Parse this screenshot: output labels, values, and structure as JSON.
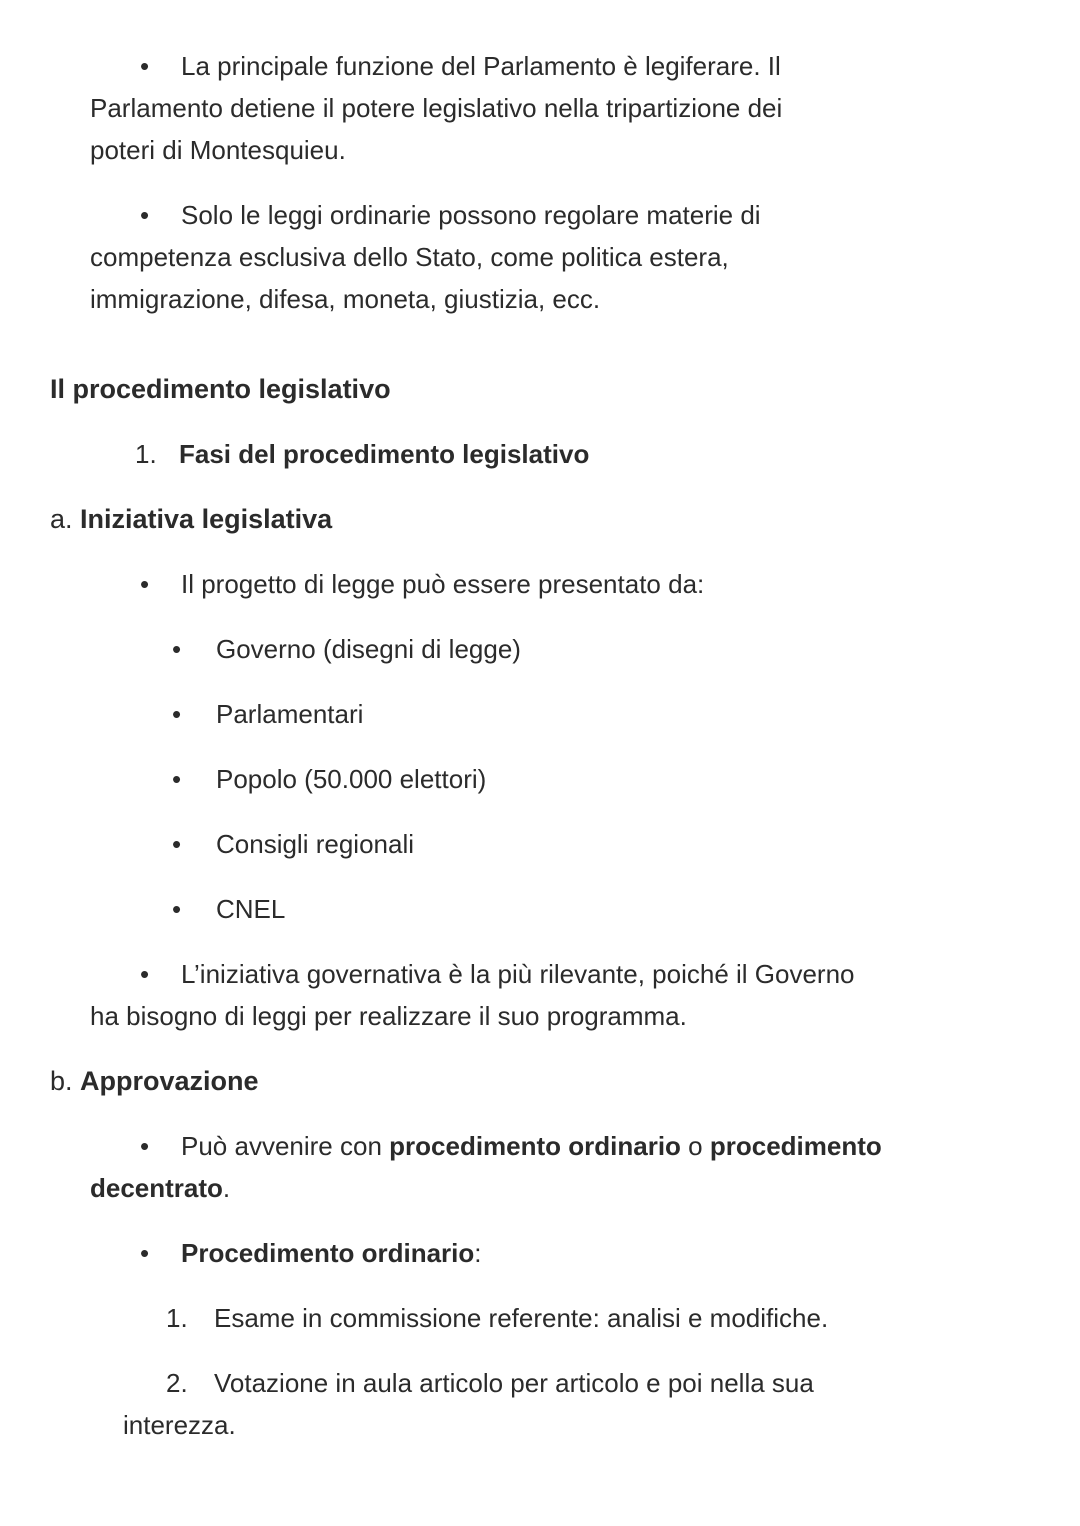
{
  "page": {
    "background_color": "#ffffff",
    "text_color": "#2b2b2b"
  },
  "document": {
    "blocks": [
      {
        "type": "bullet1",
        "marker": "•",
        "runs": [
          {
            "text": "La principale funzione del Parlamento è legiferare. Il\nParlamento detiene il potere legislativo nella tripartizione dei\npoteri di Montesquieu."
          }
        ]
      },
      {
        "type": "bullet1",
        "marker": "•",
        "runs": [
          {
            "text": "Solo le leggi ordinarie possono regolare materie di\ncompetenza esclusiva dello Stato, come politica estera,\nimmigrazione, difesa, moneta, giustizia, ecc."
          }
        ]
      },
      {
        "type": "heading",
        "runs": [
          {
            "text": "Il procedimento legislativo",
            "bold": true
          }
        ]
      },
      {
        "type": "number1",
        "marker": "1.",
        "runs": [
          {
            "text": "Fasi del procedimento legislativo",
            "bold": true
          }
        ]
      },
      {
        "type": "heading",
        "runs": [
          {
            "text": "a. "
          },
          {
            "text": "Iniziativa legislativa",
            "bold": true
          }
        ]
      },
      {
        "type": "bullet1",
        "marker": "•",
        "runs": [
          {
            "text": "Il progetto di legge può essere presentato da:"
          }
        ]
      },
      {
        "type": "bullet2",
        "marker": "•",
        "runs": [
          {
            "text": "Governo (disegni di legge)"
          }
        ]
      },
      {
        "type": "bullet2",
        "marker": "•",
        "runs": [
          {
            "text": "Parlamentari"
          }
        ]
      },
      {
        "type": "bullet2",
        "marker": "•",
        "runs": [
          {
            "text": "Popolo (50.000 elettori)"
          }
        ]
      },
      {
        "type": "bullet2",
        "marker": "•",
        "runs": [
          {
            "text": "Consigli regionali"
          }
        ]
      },
      {
        "type": "bullet2",
        "marker": "•",
        "runs": [
          {
            "text": "CNEL"
          }
        ]
      },
      {
        "type": "bullet1",
        "marker": "•",
        "runs": [
          {
            "text": "L’iniziativa governativa è la più rilevante, poiché il Governo\nha bisogno di leggi per realizzare il suo programma."
          }
        ]
      },
      {
        "type": "heading",
        "runs": [
          {
            "text": "b. "
          },
          {
            "text": "Approvazione",
            "bold": true
          }
        ]
      },
      {
        "type": "bullet1",
        "marker": "•",
        "runs": [
          {
            "text": "Può avvenire con "
          },
          {
            "text": "procedimento ordinario",
            "bold": true
          },
          {
            "text": " o "
          },
          {
            "text": "procedimento\ndecentrato",
            "bold": true
          },
          {
            "text": "."
          }
        ]
      },
      {
        "type": "bullet1",
        "marker": "•",
        "runs": [
          {
            "text": "Procedimento ordinario",
            "bold": true
          },
          {
            "text": ":"
          }
        ]
      },
      {
        "type": "number2",
        "marker": "1.",
        "runs": [
          {
            "text": "Esame in commissione referente: analisi e modifiche."
          }
        ]
      },
      {
        "type": "number2",
        "marker": "2.",
        "runs": [
          {
            "text": "Votazione in aula articolo per articolo e poi nella sua\ninterezza."
          }
        ]
      }
    ]
  }
}
